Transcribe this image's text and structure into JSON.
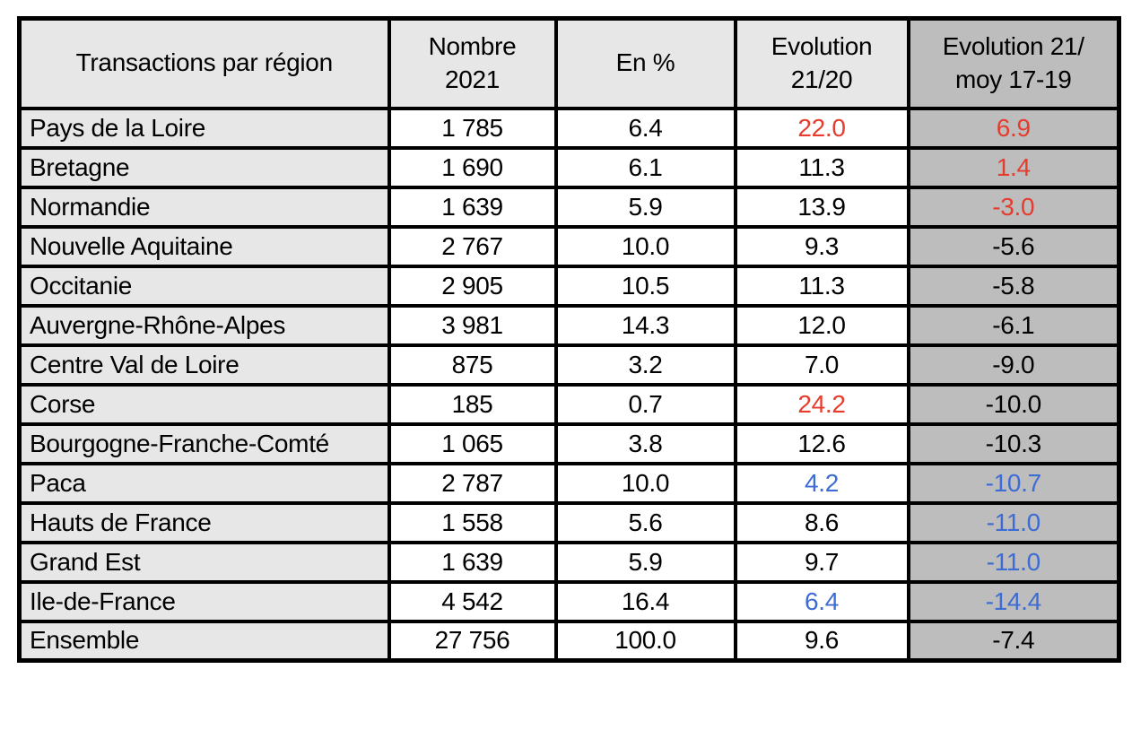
{
  "chart_data": {
    "type": "table",
    "title": "Transactions par région",
    "headers": [
      "Transactions par région",
      "Nombre\n2021",
      "En %",
      "Evolution\n21/20",
      "Evolution 21/\nmoy 17-19"
    ],
    "rows": [
      {
        "region": "Pays de la Loire",
        "nombre": "1 785",
        "pct": "6.4",
        "evo_21_20": "22.0",
        "evo_21_20_color": "red",
        "evo_moy": "6.9",
        "evo_moy_color": "red"
      },
      {
        "region": "Bretagne",
        "nombre": "1 690",
        "pct": "6.1",
        "evo_21_20": "11.3",
        "evo_21_20_color": "black",
        "evo_moy": "1.4",
        "evo_moy_color": "red"
      },
      {
        "region": "Normandie",
        "nombre": "1 639",
        "pct": "5.9",
        "evo_21_20": "13.9",
        "evo_21_20_color": "black",
        "evo_moy": "-3.0",
        "evo_moy_color": "red"
      },
      {
        "region": "Nouvelle Aquitaine",
        "nombre": "2 767",
        "pct": "10.0",
        "evo_21_20": "9.3",
        "evo_21_20_color": "black",
        "evo_moy": "-5.6",
        "evo_moy_color": "black"
      },
      {
        "region": "Occitanie",
        "nombre": "2 905",
        "pct": "10.5",
        "evo_21_20": "11.3",
        "evo_21_20_color": "black",
        "evo_moy": "-5.8",
        "evo_moy_color": "black"
      },
      {
        "region": "Auvergne-Rhône-Alpes",
        "nombre": "3 981",
        "pct": "14.3",
        "evo_21_20": "12.0",
        "evo_21_20_color": "black",
        "evo_moy": "-6.1",
        "evo_moy_color": "black"
      },
      {
        "region": "Centre Val de Loire",
        "nombre": "875",
        "pct": "3.2",
        "evo_21_20": "7.0",
        "evo_21_20_color": "black",
        "evo_moy": "-9.0",
        "evo_moy_color": "black"
      },
      {
        "region": "Corse",
        "nombre": "185",
        "pct": "0.7",
        "evo_21_20": "24.2",
        "evo_21_20_color": "red",
        "evo_moy": "-10.0",
        "evo_moy_color": "black"
      },
      {
        "region": "Bourgogne-Franche-Comté",
        "nombre": "1 065",
        "pct": "3.8",
        "evo_21_20": "12.6",
        "evo_21_20_color": "black",
        "evo_moy": "-10.3",
        "evo_moy_color": "black"
      },
      {
        "region": "Paca",
        "nombre": "2 787",
        "pct": "10.0",
        "evo_21_20": "4.2",
        "evo_21_20_color": "blue",
        "evo_moy": "-10.7",
        "evo_moy_color": "blue"
      },
      {
        "region": "Hauts de France",
        "nombre": "1 558",
        "pct": "5.6",
        "evo_21_20": "8.6",
        "evo_21_20_color": "black",
        "evo_moy": "-11.0",
        "evo_moy_color": "blue"
      },
      {
        "region": "Grand Est",
        "nombre": "1 639",
        "pct": "5.9",
        "evo_21_20": "9.7",
        "evo_21_20_color": "black",
        "evo_moy": "-11.0",
        "evo_moy_color": "blue"
      },
      {
        "region": "Ile-de-France",
        "nombre": "4 542",
        "pct": "16.4",
        "evo_21_20": "6.4",
        "evo_21_20_color": "blue",
        "evo_moy": "-14.4",
        "evo_moy_color": "blue"
      },
      {
        "region": "Ensemble",
        "nombre": "27 756",
        "pct": "100.0",
        "evo_21_20": "9.6",
        "evo_21_20_color": "black",
        "evo_moy": "-7.4",
        "evo_moy_color": "black"
      }
    ]
  },
  "colors": {
    "red": "#e63c2d",
    "blue": "#3c6cd4",
    "header_bg": "#e7e7e7",
    "region_col_bg": "#e7e7e7",
    "value_col_bg": "#ffffff",
    "last_col_bg": "#bdbdbd",
    "border": "#000000",
    "text": "#000000",
    "page_bg": "#ffffff"
  }
}
